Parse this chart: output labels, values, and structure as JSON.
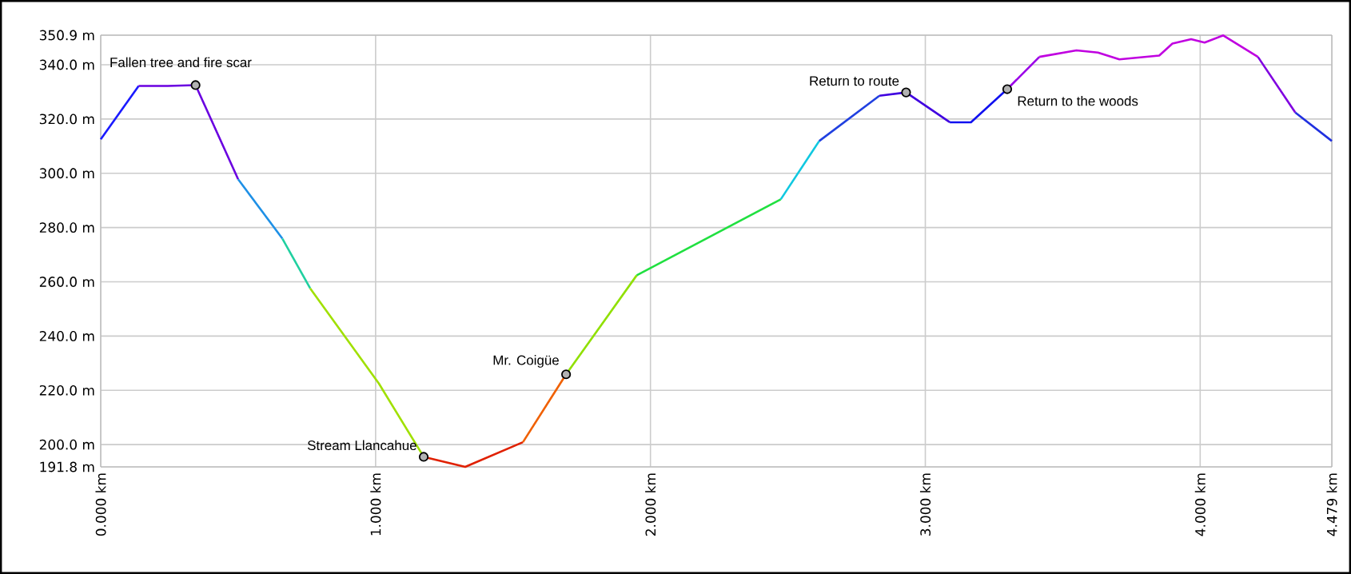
{
  "chart_data": {
    "type": "line",
    "xlim": [
      0,
      4.479
    ],
    "ylim": [
      191.8,
      350.9
    ],
    "xticks": [
      {
        "value": 0,
        "label": "0.000 km"
      },
      {
        "value": 1,
        "label": "1.000 km"
      },
      {
        "value": 2,
        "label": "2.000 km"
      },
      {
        "value": 3,
        "label": "3.000 km"
      },
      {
        "value": 4,
        "label": "4.000 km"
      },
      {
        "value": 4.479,
        "label": "4.479 km"
      }
    ],
    "yticks": [
      {
        "value": 191.8,
        "label": "191.8 m"
      },
      {
        "value": 200,
        "label": "200.0 m"
      },
      {
        "value": 220,
        "label": "220.0 m"
      },
      {
        "value": 240,
        "label": "240.0 m"
      },
      {
        "value": 260,
        "label": "260.0 m"
      },
      {
        "value": 280,
        "label": "280.0 m"
      },
      {
        "value": 300,
        "label": "300.0 m"
      },
      {
        "value": 320,
        "label": "320.0 m"
      },
      {
        "value": 340,
        "label": "340.0 m"
      },
      {
        "value": 350.9,
        "label": "350.9 m"
      }
    ],
    "grid": true,
    "marker": "none",
    "line_style": "solid",
    "series": [
      {
        "color": "#1a1aff",
        "x": [
          0,
          0.138
        ],
        "values": [
          312.5,
          332.2
        ]
      },
      {
        "color": "#6a00e0",
        "x": [
          0.138,
          0.244,
          0.345,
          0.5
        ],
        "values": [
          332.2,
          332.2,
          332.5,
          297.8
        ]
      },
      {
        "color": "#1e90e6",
        "x": [
          0.5,
          0.661
        ],
        "values": [
          297.8,
          275.9
        ]
      },
      {
        "color": "#20d0a0",
        "x": [
          0.661,
          0.762
        ],
        "values": [
          275.9,
          257.6
        ]
      },
      {
        "color": "#a0e000",
        "x": [
          0.762,
          1.012,
          1.175
        ],
        "values": [
          257.6,
          222.5,
          195.5
        ]
      },
      {
        "color": "#e02000",
        "x": [
          1.175,
          1.326,
          1.536
        ],
        "values": [
          195.5,
          191.8,
          200.9
        ]
      },
      {
        "color": "#f06000",
        "x": [
          1.536,
          1.693
        ],
        "values": [
          200.9,
          225.9
        ]
      },
      {
        "color": "#90e000",
        "x": [
          1.693,
          1.95
        ],
        "values": [
          225.9,
          262.4
        ]
      },
      {
        "color": "#20e040",
        "x": [
          1.95,
          2.474
        ],
        "values": [
          262.4,
          290.4
        ]
      },
      {
        "color": "#10c8e0",
        "x": [
          2.474,
          2.614
        ],
        "values": [
          290.4,
          311.9
        ]
      },
      {
        "color": "#2040e0",
        "x": [
          2.614,
          2.833
        ],
        "values": [
          311.9,
          328.6
        ]
      },
      {
        "color": "#4000e0",
        "x": [
          2.833,
          2.93,
          3.089
        ],
        "values": [
          328.6,
          329.8,
          318.8
        ]
      },
      {
        "color": "#1010f0",
        "x": [
          3.089,
          3.166,
          3.298
        ],
        "values": [
          318.8,
          318.8,
          331.0
        ]
      },
      {
        "color": "#9a00e8",
        "x": [
          3.298,
          3.415
        ],
        "values": [
          331.0,
          342.9
        ]
      },
      {
        "color": "#c000e0",
        "x": [
          3.415,
          3.55,
          3.628,
          3.706,
          3.851,
          3.899,
          3.967,
          4.016,
          4.084,
          4.21
        ],
        "values": [
          342.9,
          345.3,
          344.5,
          342.0,
          343.4,
          347.8,
          349.4,
          348.2,
          350.8,
          342.9
        ]
      },
      {
        "color": "#8000e0",
        "x": [
          4.21,
          4.346
        ],
        "values": [
          342.9,
          322.4
        ]
      },
      {
        "color": "#2030e0",
        "x": [
          4.346,
          4.479
        ],
        "values": [
          322.4,
          311.9
        ]
      },
      {
        "type": "scatter",
        "marker": "circle",
        "color": "#000000",
        "x": [
          0.345,
          1.175,
          1.693,
          2.93,
          3.298
        ],
        "values": [
          332.5,
          195.5,
          225.9,
          329.8,
          331.0
        ]
      }
    ],
    "annotations": [
      {
        "text": "Fallen tree and fire scar",
        "x": 0.345,
        "y": 332.5
      },
      {
        "text": "Stream Llancahue",
        "x": 1.175,
        "y": 195.5
      },
      {
        "text": "Mr. Coigüe",
        "x": 1.693,
        "y": 225.9
      },
      {
        "text": "Return to route",
        "x": 2.93,
        "y": 329.8
      },
      {
        "text": "Return to the woods",
        "x": 3.298,
        "y": 331.0
      }
    ]
  }
}
